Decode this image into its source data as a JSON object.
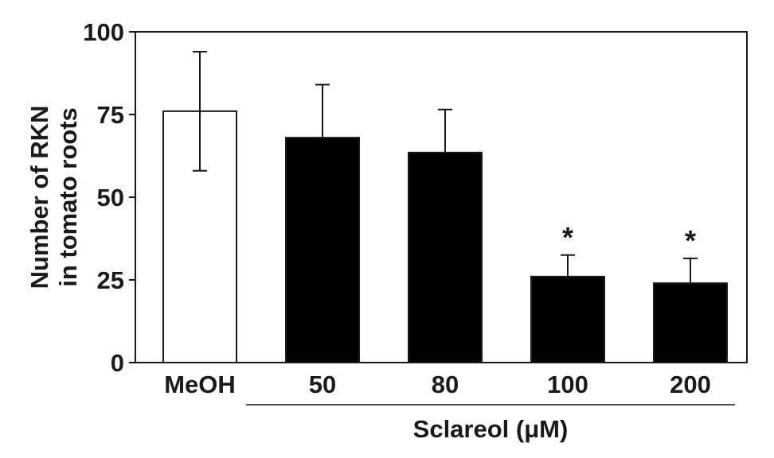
{
  "chart_data": {
    "type": "bar",
    "title": "",
    "ylabel_lines": [
      "Number of RKN",
      "in tomato roots"
    ],
    "xgroup_label": "Sclareol (μM)",
    "ylim": [
      0,
      100
    ],
    "yticks": [
      0,
      25,
      50,
      75,
      100
    ],
    "ytick_labels": [
      "0",
      "25",
      "50",
      "75",
      "100"
    ],
    "grid": false,
    "legend": "none",
    "categories": [
      "MeOH",
      "50",
      "80",
      "100",
      "200"
    ],
    "values": [
      76,
      68,
      63.5,
      26,
      24
    ],
    "errors": [
      18,
      16,
      13,
      6.5,
      7.5
    ],
    "significance": [
      "",
      "",
      "",
      "*",
      "*"
    ],
    "fills": [
      "#ffffff",
      "#000000",
      "#000000",
      "#000000",
      "#000000"
    ],
    "sclareol_group_categories": [
      "50",
      "80",
      "100",
      "200"
    ]
  }
}
